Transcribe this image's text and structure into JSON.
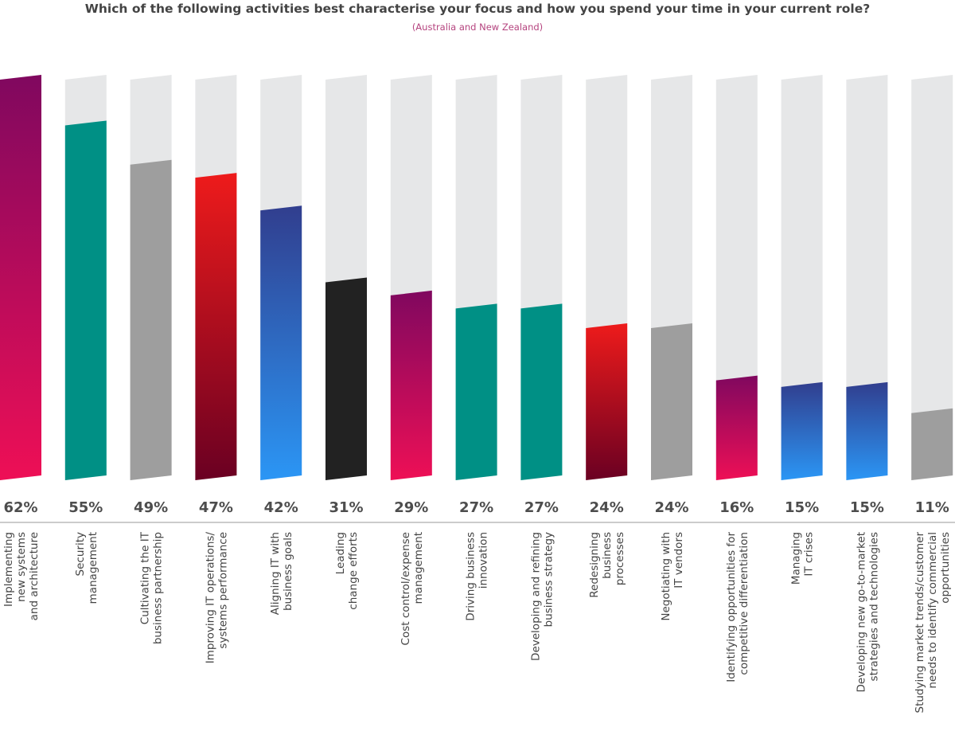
{
  "chart_data": {
    "type": "bar",
    "title": "Which of the following activities best characterise your focus and how you spend your time in your current role?",
    "subtitle": "(Australia and New Zealand)",
    "xlabel": "",
    "ylabel": "",
    "ylim": [
      0,
      62
    ],
    "unit": "%",
    "categories": [
      [
        "Implementing",
        "new systems",
        "and architecture"
      ],
      [
        "Security",
        "management"
      ],
      [
        "Cultivating the IT",
        "business partnership"
      ],
      [
        "Improving IT operations/",
        "systems performance"
      ],
      [
        "Aligning IT with",
        "business goals"
      ],
      [
        "Leading",
        "change efforts"
      ],
      [
        "Cost control/expense",
        "management"
      ],
      [
        "Driving business",
        "innovation"
      ],
      [
        "Developing and refining",
        "business strategy"
      ],
      [
        "Redesigning",
        "business",
        "processes"
      ],
      [
        "Negotiating with",
        "IT vendors"
      ],
      [
        "Identifying opportunities for",
        "competitive differentiation"
      ],
      [
        "Managing",
        "IT crises"
      ],
      [
        "Developing new go-to-market",
        "strategies and technologies"
      ],
      [
        "Studying market trends/customer",
        "needs to identify commercial",
        "opportunities"
      ]
    ],
    "values": [
      62,
      55,
      49,
      47,
      42,
      31,
      29,
      27,
      27,
      24,
      24,
      16,
      15,
      15,
      11
    ],
    "labels": [
      "62%",
      "55%",
      "49%",
      "47%",
      "42%",
      "31%",
      "29%",
      "27%",
      "27%",
      "24%",
      "24%",
      "16%",
      "15%",
      "15%",
      "11%"
    ],
    "bar_styles": [
      "magenta",
      "teal",
      "gray",
      "red",
      "blue",
      "black",
      "magenta",
      "teal",
      "teal",
      "red",
      "gray",
      "magenta",
      "blue",
      "blue",
      "gray"
    ],
    "colors": {
      "magenta": [
        "#80085f",
        "#ee0f56"
      ],
      "teal": [
        "#009085",
        "#009085"
      ],
      "gray": [
        "#9e9e9e",
        "#9e9e9e"
      ],
      "red": [
        "#ee1b1b",
        "#6a0022"
      ],
      "blue": [
        "#313e8e",
        "#2b96f5"
      ],
      "black": [
        "#222222",
        "#222222"
      ],
      "track": "#e6e7e8",
      "value_text": "#4d4d4d",
      "label_text": "#444444",
      "rule": "#9a9a9a"
    }
  }
}
